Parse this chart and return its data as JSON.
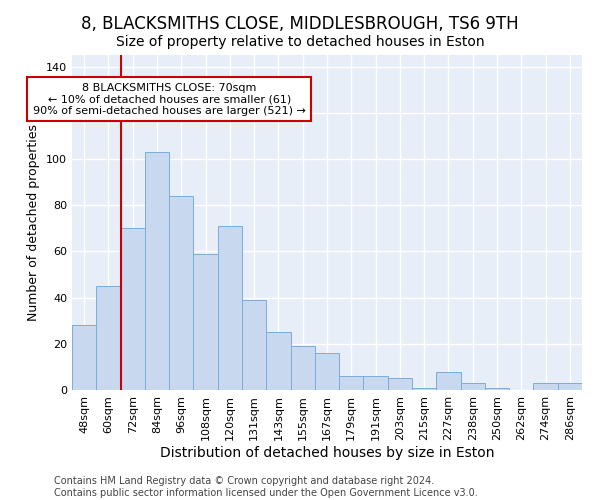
{
  "title": "8, BLACKSMITHS CLOSE, MIDDLESBROUGH, TS6 9TH",
  "subtitle": "Size of property relative to detached houses in Eston",
  "xlabel": "Distribution of detached houses by size in Eston",
  "ylabel": "Number of detached properties",
  "categories": [
    "48sqm",
    "60sqm",
    "72sqm",
    "84sqm",
    "96sqm",
    "108sqm",
    "120sqm",
    "131sqm",
    "143sqm",
    "155sqm",
    "167sqm",
    "179sqm",
    "191sqm",
    "203sqm",
    "215sqm",
    "227sqm",
    "238sqm",
    "250sqm",
    "262sqm",
    "274sqm",
    "286sqm"
  ],
  "values": [
    28,
    45,
    70,
    103,
    84,
    59,
    71,
    39,
    25,
    19,
    16,
    6,
    6,
    5,
    1,
    8,
    3,
    1,
    0,
    3,
    3
  ],
  "bar_color": "#c8d9ef",
  "bar_edge_color": "#7aaddb",
  "background_color": "#e8eef8",
  "grid_color": "#ffffff",
  "red_line_color": "#cc0000",
  "red_line_index": 2,
  "annotation_text": "8 BLACKSMITHS CLOSE: 70sqm\n← 10% of detached houses are smaller (61)\n90% of semi-detached houses are larger (521) →",
  "annotation_box_color": "#ffffff",
  "annotation_box_edge_color": "#cc0000",
  "footer_text": "Contains HM Land Registry data © Crown copyright and database right 2024.\nContains public sector information licensed under the Open Government Licence v3.0.",
  "fig_facecolor": "#ffffff",
  "ylim": [
    0,
    145
  ],
  "title_fontsize": 12,
  "subtitle_fontsize": 10,
  "xlabel_fontsize": 10,
  "ylabel_fontsize": 9,
  "tick_fontsize": 8,
  "footer_fontsize": 7,
  "annotation_fontsize": 8
}
